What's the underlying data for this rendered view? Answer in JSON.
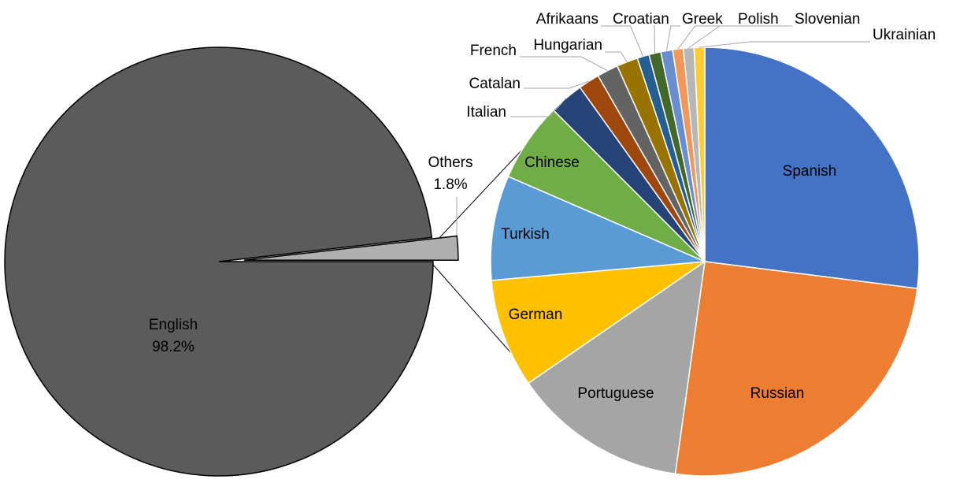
{
  "chart_data": [
    {
      "type": "pie",
      "categories": [
        "English",
        "Others"
      ],
      "values": [
        98.2,
        1.8
      ],
      "value_labels": [
        "98.2%",
        "1.8%"
      ],
      "colors": [
        "#5b5b5b",
        "#b0b0b0"
      ]
    },
    {
      "type": "pie",
      "categories": [
        "Spanish",
        "Russian",
        "Portuguese",
        "German",
        "Turkish",
        "Chinese",
        "Italian",
        "Catalan",
        "French",
        "Hungarian",
        "Afrikaans",
        "Croatian",
        "Greek",
        "Polish",
        "Slovenian",
        "Ukrainian"
      ],
      "values": [
        27.0,
        25.2,
        13.2,
        8.2,
        7.9,
        6.0,
        2.6,
        1.6,
        1.6,
        1.6,
        0.9,
        0.9,
        0.9,
        0.8,
        0.8,
        0.8
      ],
      "colors": [
        "#4472c4",
        "#ed7d31",
        "#a5a5a5",
        "#ffc000",
        "#5b9bd5",
        "#70ad47",
        "#264478",
        "#9e480e",
        "#636363",
        "#997300",
        "#255e91",
        "#43682b",
        "#698ed0",
        "#f1975a",
        "#b7b7b7",
        "#ffcd33"
      ]
    }
  ]
}
